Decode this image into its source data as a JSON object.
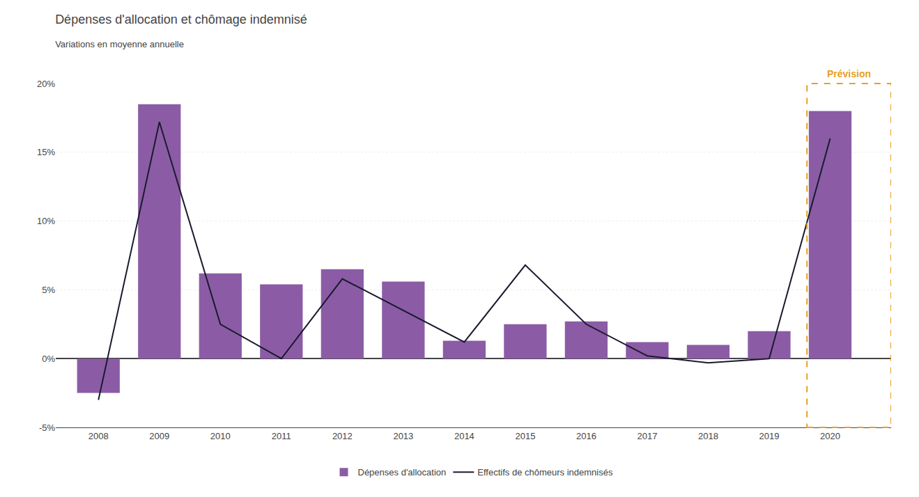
{
  "chart_data": {
    "type": "bar",
    "title": "Dépenses d'allocation et chômage indemnisé",
    "subtitle": "Variations en moyenne annuelle",
    "x": [
      2008,
      2009,
      2010,
      2011,
      2012,
      2013,
      2014,
      2015,
      2016,
      2017,
      2018,
      2019,
      2020
    ],
    "series": [
      {
        "name": "Dépenses d'allocation",
        "type": "bar",
        "color": "#8B5CA5",
        "values": [
          -0.025,
          0.185,
          0.062,
          0.054,
          0.065,
          0.056,
          0.013,
          0.025,
          0.027,
          0.012,
          0.01,
          0.02,
          0.18
        ]
      },
      {
        "name": "Effectifs de chômeurs indemnisés",
        "type": "line",
        "color": "#1a1a2e",
        "values": [
          -0.03,
          0.172,
          0.025,
          0.0,
          0.058,
          0.035,
          0.012,
          0.068,
          0.025,
          0.002,
          -0.003,
          0.0,
          0.16
        ]
      }
    ],
    "xlim": [
      2007.3,
      2021.0
    ],
    "xticks": [
      2008,
      2009,
      2010,
      2011,
      2012,
      2013,
      2014,
      2015,
      2016,
      2017,
      2018,
      2019,
      2020
    ],
    "ylim": [
      -0.05,
      0.2
    ],
    "yticks": [
      {
        "value": -0.05,
        "label": "-5%"
      },
      {
        "value": 0.0,
        "label": "0%"
      },
      {
        "value": 0.05,
        "label": "5%"
      },
      {
        "value": 0.1,
        "label": "10%"
      },
      {
        "value": 0.15,
        "label": "15%"
      },
      {
        "value": 0.2,
        "label": "20%"
      }
    ],
    "grid": true,
    "legend": "bottom",
    "annotations": [
      {
        "text": "Prévision",
        "x": 2020,
        "color": "#E8A020"
      }
    ]
  }
}
